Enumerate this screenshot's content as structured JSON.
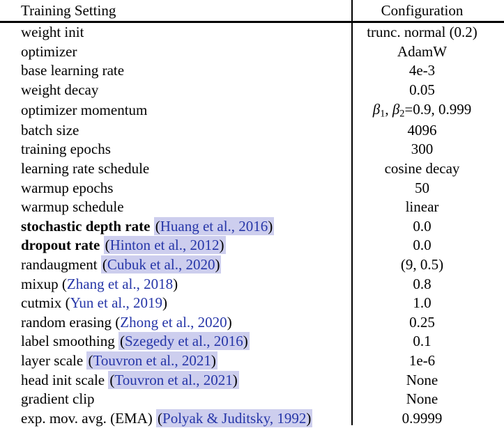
{
  "colors": {
    "bg": "#ffffff",
    "text": "#000000",
    "rule": "#000000",
    "citation_blue": "#2636a8",
    "citation_highlight": "#cdceee"
  },
  "table": {
    "header": {
      "setting": "Training Setting",
      "configuration": "Configuration"
    },
    "rows": [
      {
        "label": "weight init",
        "value": "trunc. normal (0.2)"
      },
      {
        "label": "optimizer",
        "value": "AdamW"
      },
      {
        "label": "base learning rate",
        "value": "4e-3"
      },
      {
        "label": "weight decay",
        "value": "0.05"
      },
      {
        "label": "optimizer momentum",
        "value_parts": [
          {
            "text": "β",
            "italic": true
          },
          {
            "text": "1",
            "sub": true
          },
          {
            "text": ", "
          },
          {
            "text": "β",
            "italic": true
          },
          {
            "text": "2",
            "sub": true
          },
          {
            "text": "=0.9, 0.999"
          }
        ]
      },
      {
        "label": "batch size",
        "value": "4096"
      },
      {
        "label": "training epochs",
        "value": "300"
      },
      {
        "label": "learning rate schedule",
        "value": "cosine decay"
      },
      {
        "label": "warmup epochs",
        "value": "50"
      },
      {
        "label": "warmup schedule",
        "value": "linear"
      },
      {
        "label": "stochastic depth rate",
        "bold": true,
        "citation": "Huang et al., 2016",
        "citation_highlighted": true,
        "value": "0.0"
      },
      {
        "label": "dropout rate",
        "bold": true,
        "citation": "Hinton et al., 2012",
        "citation_highlighted": true,
        "value": "0.0"
      },
      {
        "label": "randaugment",
        "citation": "Cubuk et al., 2020",
        "citation_highlighted": true,
        "value": "(9, 0.5)"
      },
      {
        "label": "mixup",
        "citation": "Zhang et al., 2018",
        "citation_highlighted": false,
        "value": "0.8"
      },
      {
        "label": "cutmix",
        "citation": "Yun et al., 2019",
        "citation_highlighted": false,
        "value": "1.0"
      },
      {
        "label": "random erasing",
        "citation": "Zhong et al., 2020",
        "citation_highlighted": false,
        "value": "0.25"
      },
      {
        "label": "label smoothing",
        "citation": "Szegedy et al., 2016",
        "citation_highlighted": true,
        "value": "0.1"
      },
      {
        "label": "layer scale",
        "citation": "Touvron et al., 2021",
        "citation_highlighted": true,
        "value": "1e-6"
      },
      {
        "label": "head init scale",
        "citation": "Touvron et al., 2021",
        "citation_highlighted": true,
        "value": "None"
      },
      {
        "label": "gradient clip",
        "value": "None"
      },
      {
        "label": "exp. mov. avg. (EMA)",
        "citation": "Polyak & Juditsky, 1992",
        "citation_highlighted": true,
        "value": "0.9999"
      }
    ]
  }
}
